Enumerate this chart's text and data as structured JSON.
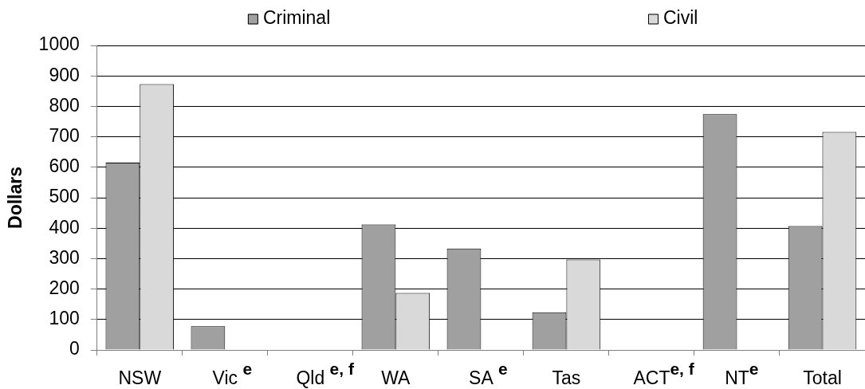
{
  "chart_data": {
    "type": "bar",
    "ylabel": "Dollars",
    "categories": [
      "NSW",
      "Vic $^{e}$",
      "Qld $^{e, f}$",
      "WA",
      "SA $^{e}$",
      "Tas",
      "ACT$^{e, f}$",
      "NT$^{e}$",
      "Total"
    ],
    "series": [
      {
        "name": "Criminal",
        "color": "#a0a0a0",
        "values": [
          615,
          78,
          null,
          412,
          333,
          124,
          null,
          774,
          407
        ]
      },
      {
        "name": "Civil",
        "color": "#d9d9d9",
        "values": [
          873,
          null,
          null,
          187,
          null,
          297,
          null,
          null,
          716
        ]
      }
    ],
    "ylim": [
      0,
      1000
    ],
    "yticks": [
      0,
      100,
      200,
      300,
      400,
      500,
      600,
      700,
      800,
      900,
      1000
    ],
    "grid": "y",
    "legend": "top"
  }
}
